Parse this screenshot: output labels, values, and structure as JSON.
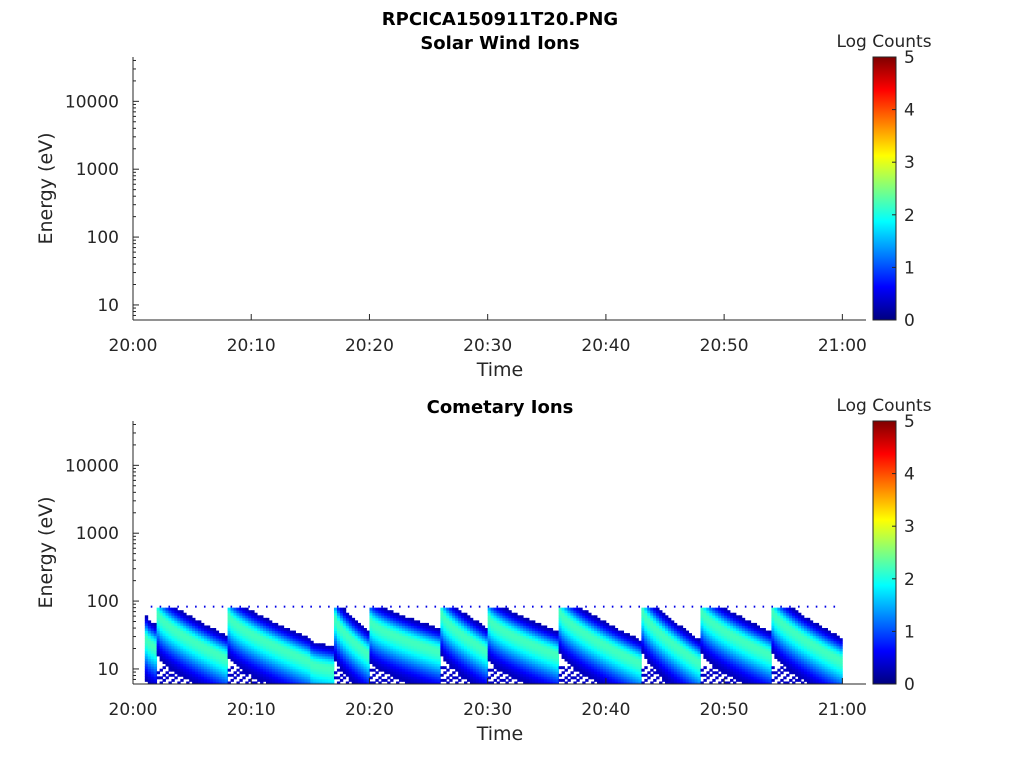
{
  "figure_title": "RPCICA150911T20.PNG",
  "chart_data": [
    {
      "type": "heatmap",
      "title": "Solar Wind Ions",
      "xlabel": "Time",
      "ylabel": "Energy (eV)",
      "x_ticks": [
        "20:00",
        "20:10",
        "20:20",
        "20:30",
        "20:40",
        "20:50",
        "21:00"
      ],
      "xlim": [
        "20:00",
        "21:02"
      ],
      "y_scale": "log",
      "y_ticks": [
        "10",
        "100",
        "1000",
        "10000"
      ],
      "ylim": [
        6,
        45000
      ],
      "colorbar": {
        "label": "Log Counts",
        "range": [
          0,
          5
        ],
        "ticks": [
          "0",
          "1",
          "2",
          "3",
          "4",
          "5"
        ],
        "colormap": "jet"
      },
      "data_present": false,
      "segments": []
    },
    {
      "type": "heatmap",
      "title": "Cometary Ions",
      "xlabel": "Time",
      "ylabel": "Energy (eV)",
      "x_ticks": [
        "20:00",
        "20:10",
        "20:20",
        "20:30",
        "20:40",
        "20:50",
        "21:00"
      ],
      "xlim": [
        "20:00",
        "21:02"
      ],
      "y_scale": "log",
      "y_ticks": [
        "10",
        "100",
        "1000",
        "10000"
      ],
      "ylim": [
        6,
        45000
      ],
      "colorbar": {
        "label": "Log Counts",
        "range": [
          0,
          5
        ],
        "ticks": [
          "0",
          "1",
          "2",
          "3",
          "4",
          "5"
        ],
        "colormap": "jet"
      },
      "data_present": true,
      "data_start": "20:01",
      "data_end": "21:00",
      "max_energy_ev": 80,
      "peak_log_counts": 2.2,
      "segments": [
        {
          "start": "20:01",
          "end": "20:02",
          "peak_start_ev": 28,
          "peak_end_ev": 20
        },
        {
          "start": "20:02",
          "end": "20:08",
          "peak_start_ev": 65,
          "peak_end_ev": 14
        },
        {
          "start": "20:08",
          "end": "20:15",
          "peak_start_ev": 60,
          "peak_end_ev": 13
        },
        {
          "start": "20:15",
          "end": "20:17",
          "peak_start_ev": 12,
          "peak_end_ev": 10
        },
        {
          "start": "20:17",
          "end": "20:20",
          "peak_start_ev": 55,
          "peak_end_ev": 16
        },
        {
          "start": "20:20",
          "end": "20:26",
          "peak_start_ev": 50,
          "peak_end_ev": 18
        },
        {
          "start": "20:26",
          "end": "20:30",
          "peak_start_ev": 65,
          "peak_end_ev": 18
        },
        {
          "start": "20:30",
          "end": "20:36",
          "peak_start_ev": 55,
          "peak_end_ev": 16
        },
        {
          "start": "20:36",
          "end": "20:43",
          "peak_start_ev": 70,
          "peak_end_ev": 12
        },
        {
          "start": "20:43",
          "end": "20:48",
          "peak_start_ev": 70,
          "peak_end_ev": 12
        },
        {
          "start": "20:48",
          "end": "20:54",
          "peak_start_ev": 70,
          "peak_end_ev": 16
        },
        {
          "start": "20:54",
          "end": "21:00",
          "peak_start_ev": 70,
          "peak_end_ev": 13
        }
      ]
    }
  ]
}
